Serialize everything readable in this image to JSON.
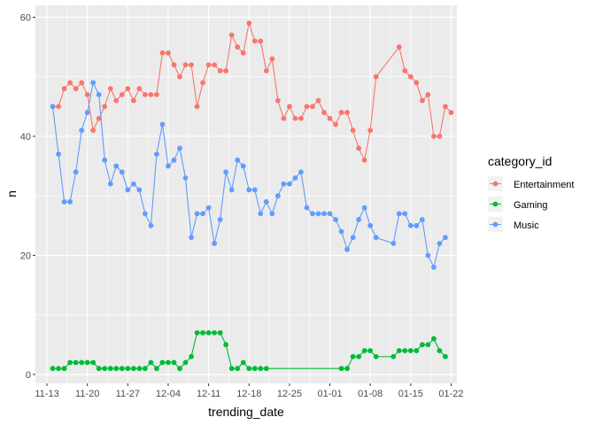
{
  "chart_data": {
    "type": "line",
    "xlabel": "trending_date",
    "ylabel": "n",
    "xlim": [
      "2017-11-11",
      "2018-01-23"
    ],
    "ylim": [
      -1.5,
      62
    ],
    "x_ticks": [
      {
        "date": "2017-11-13",
        "label": "11-13"
      },
      {
        "date": "2017-11-20",
        "label": "11-20"
      },
      {
        "date": "2017-11-27",
        "label": "11-27"
      },
      {
        "date": "2017-12-04",
        "label": "12-04"
      },
      {
        "date": "2017-12-11",
        "label": "12-11"
      },
      {
        "date": "2017-12-18",
        "label": "12-18"
      },
      {
        "date": "2017-12-25",
        "label": "12-25"
      },
      {
        "date": "2018-01-01",
        "label": "01-01"
      },
      {
        "date": "2018-01-08",
        "label": "01-08"
      },
      {
        "date": "2018-01-15",
        "label": "01-15"
      },
      {
        "date": "2018-01-22",
        "label": "01-22"
      }
    ],
    "y_ticks": [
      0,
      20,
      40,
      60
    ],
    "grid": true,
    "legend": {
      "title": "category_id",
      "position": "right"
    },
    "series": [
      {
        "name": "Entertainment",
        "color": "#F8766D",
        "points": [
          [
            "2017-11-14",
            45
          ],
          [
            "2017-11-15",
            45
          ],
          [
            "2017-11-16",
            48
          ],
          [
            "2017-11-17",
            49
          ],
          [
            "2017-11-18",
            48
          ],
          [
            "2017-11-19",
            49
          ],
          [
            "2017-11-20",
            47
          ],
          [
            "2017-11-21",
            41
          ],
          [
            "2017-11-22",
            43
          ],
          [
            "2017-11-23",
            45
          ],
          [
            "2017-11-24",
            48
          ],
          [
            "2017-11-25",
            46
          ],
          [
            "2017-11-26",
            47
          ],
          [
            "2017-11-27",
            48
          ],
          [
            "2017-11-28",
            46
          ],
          [
            "2017-11-29",
            48
          ],
          [
            "2017-11-30",
            47
          ],
          [
            "2017-12-01",
            47
          ],
          [
            "2017-12-02",
            47
          ],
          [
            "2017-12-03",
            54
          ],
          [
            "2017-12-04",
            54
          ],
          [
            "2017-12-05",
            52
          ],
          [
            "2017-12-06",
            50
          ],
          [
            "2017-12-07",
            52
          ],
          [
            "2017-12-08",
            52
          ],
          [
            "2017-12-09",
            45
          ],
          [
            "2017-12-10",
            49
          ],
          [
            "2017-12-11",
            52
          ],
          [
            "2017-12-12",
            52
          ],
          [
            "2017-12-13",
            51
          ],
          [
            "2017-12-14",
            51
          ],
          [
            "2017-12-15",
            57
          ],
          [
            "2017-12-16",
            55
          ],
          [
            "2017-12-17",
            54
          ],
          [
            "2017-12-18",
            59
          ],
          [
            "2017-12-19",
            56
          ],
          [
            "2017-12-20",
            56
          ],
          [
            "2017-12-21",
            51
          ],
          [
            "2017-12-22",
            53
          ],
          [
            "2017-12-23",
            46
          ],
          [
            "2017-12-24",
            43
          ],
          [
            "2017-12-25",
            45
          ],
          [
            "2017-12-26",
            43
          ],
          [
            "2017-12-27",
            43
          ],
          [
            "2017-12-28",
            45
          ],
          [
            "2017-12-29",
            45
          ],
          [
            "2017-12-30",
            46
          ],
          [
            "2017-12-31",
            44
          ],
          [
            "2018-01-01",
            43
          ],
          [
            "2018-01-02",
            42
          ],
          [
            "2018-01-03",
            44
          ],
          [
            "2018-01-04",
            44
          ],
          [
            "2018-01-05",
            41
          ],
          [
            "2018-01-06",
            38
          ],
          [
            "2018-01-07",
            36
          ],
          [
            "2018-01-08",
            41
          ],
          [
            "2018-01-09",
            50
          ],
          [
            "2018-01-13",
            55
          ],
          [
            "2018-01-14",
            51
          ],
          [
            "2018-01-15",
            50
          ],
          [
            "2018-01-16",
            49
          ],
          [
            "2018-01-17",
            46
          ],
          [
            "2018-01-18",
            47
          ],
          [
            "2018-01-19",
            40
          ],
          [
            "2018-01-20",
            40
          ],
          [
            "2018-01-21",
            45
          ],
          [
            "2018-01-22",
            44
          ]
        ]
      },
      {
        "name": "Gaming",
        "color": "#00BA38",
        "points": [
          [
            "2017-11-14",
            1
          ],
          [
            "2017-11-15",
            1
          ],
          [
            "2017-11-16",
            1
          ],
          [
            "2017-11-17",
            2
          ],
          [
            "2017-11-18",
            2
          ],
          [
            "2017-11-19",
            2
          ],
          [
            "2017-11-20",
            2
          ],
          [
            "2017-11-21",
            2
          ],
          [
            "2017-11-22",
            1
          ],
          [
            "2017-11-23",
            1
          ],
          [
            "2017-11-24",
            1
          ],
          [
            "2017-11-25",
            1
          ],
          [
            "2017-11-26",
            1
          ],
          [
            "2017-11-27",
            1
          ],
          [
            "2017-11-28",
            1
          ],
          [
            "2017-11-29",
            1
          ],
          [
            "2017-11-30",
            1
          ],
          [
            "2017-12-01",
            2
          ],
          [
            "2017-12-02",
            1
          ],
          [
            "2017-12-03",
            2
          ],
          [
            "2017-12-04",
            2
          ],
          [
            "2017-12-05",
            2
          ],
          [
            "2017-12-06",
            1
          ],
          [
            "2017-12-07",
            2
          ],
          [
            "2017-12-08",
            3
          ],
          [
            "2017-12-09",
            7
          ],
          [
            "2017-12-10",
            7
          ],
          [
            "2017-12-11",
            7
          ],
          [
            "2017-12-12",
            7
          ],
          [
            "2017-12-13",
            7
          ],
          [
            "2017-12-14",
            5
          ],
          [
            "2017-12-15",
            1
          ],
          [
            "2017-12-16",
            1
          ],
          [
            "2017-12-17",
            2
          ],
          [
            "2017-12-18",
            1
          ],
          [
            "2017-12-19",
            1
          ],
          [
            "2017-12-20",
            1
          ],
          [
            "2017-12-21",
            1
          ],
          [
            "2018-01-03",
            1
          ],
          [
            "2018-01-04",
            1
          ],
          [
            "2018-01-05",
            3
          ],
          [
            "2018-01-06",
            3
          ],
          [
            "2018-01-07",
            4
          ],
          [
            "2018-01-08",
            4
          ],
          [
            "2018-01-09",
            3
          ],
          [
            "2018-01-12",
            3
          ],
          [
            "2018-01-13",
            4
          ],
          [
            "2018-01-14",
            4
          ],
          [
            "2018-01-15",
            4
          ],
          [
            "2018-01-16",
            4
          ],
          [
            "2018-01-17",
            5
          ],
          [
            "2018-01-18",
            5
          ],
          [
            "2018-01-19",
            6
          ],
          [
            "2018-01-20",
            4
          ],
          [
            "2018-01-21",
            3
          ]
        ]
      },
      {
        "name": "Music",
        "color": "#619CFF",
        "points": [
          [
            "2017-11-14",
            45
          ],
          [
            "2017-11-15",
            37
          ],
          [
            "2017-11-16",
            29
          ],
          [
            "2017-11-17",
            29
          ],
          [
            "2017-11-18",
            34
          ],
          [
            "2017-11-19",
            41
          ],
          [
            "2017-11-20",
            44
          ],
          [
            "2017-11-21",
            49
          ],
          [
            "2017-11-22",
            47
          ],
          [
            "2017-11-23",
            36
          ],
          [
            "2017-11-24",
            32
          ],
          [
            "2017-11-25",
            35
          ],
          [
            "2017-11-26",
            34
          ],
          [
            "2017-11-27",
            31
          ],
          [
            "2017-11-28",
            32
          ],
          [
            "2017-11-29",
            31
          ],
          [
            "2017-11-30",
            27
          ],
          [
            "2017-12-01",
            25
          ],
          [
            "2017-12-02",
            37
          ],
          [
            "2017-12-03",
            42
          ],
          [
            "2017-12-04",
            35
          ],
          [
            "2017-12-05",
            36
          ],
          [
            "2017-12-06",
            38
          ],
          [
            "2017-12-07",
            33
          ],
          [
            "2017-12-08",
            23
          ],
          [
            "2017-12-09",
            27
          ],
          [
            "2017-12-10",
            27
          ],
          [
            "2017-12-11",
            28
          ],
          [
            "2017-12-12",
            22
          ],
          [
            "2017-12-13",
            26
          ],
          [
            "2017-12-14",
            34
          ],
          [
            "2017-12-15",
            31
          ],
          [
            "2017-12-16",
            36
          ],
          [
            "2017-12-17",
            35
          ],
          [
            "2017-12-18",
            31
          ],
          [
            "2017-12-19",
            31
          ],
          [
            "2017-12-20",
            27
          ],
          [
            "2017-12-21",
            29
          ],
          [
            "2017-12-22",
            27
          ],
          [
            "2017-12-23",
            30
          ],
          [
            "2017-12-24",
            32
          ],
          [
            "2017-12-25",
            32
          ],
          [
            "2017-12-26",
            33
          ],
          [
            "2017-12-27",
            34
          ],
          [
            "2017-12-28",
            28
          ],
          [
            "2017-12-29",
            27
          ],
          [
            "2017-12-30",
            27
          ],
          [
            "2017-12-31",
            27
          ],
          [
            "2018-01-01",
            27
          ],
          [
            "2018-01-02",
            26
          ],
          [
            "2018-01-03",
            24
          ],
          [
            "2018-01-04",
            21
          ],
          [
            "2018-01-05",
            23
          ],
          [
            "2018-01-06",
            26
          ],
          [
            "2018-01-07",
            28
          ],
          [
            "2018-01-08",
            25
          ],
          [
            "2018-01-09",
            23
          ],
          [
            "2018-01-12",
            22
          ],
          [
            "2018-01-13",
            27
          ],
          [
            "2018-01-14",
            27
          ],
          [
            "2018-01-15",
            25
          ],
          [
            "2018-01-16",
            25
          ],
          [
            "2018-01-17",
            26
          ],
          [
            "2018-01-18",
            20
          ],
          [
            "2018-01-19",
            18
          ],
          [
            "2018-01-20",
            22
          ],
          [
            "2018-01-21",
            23
          ]
        ]
      }
    ]
  }
}
